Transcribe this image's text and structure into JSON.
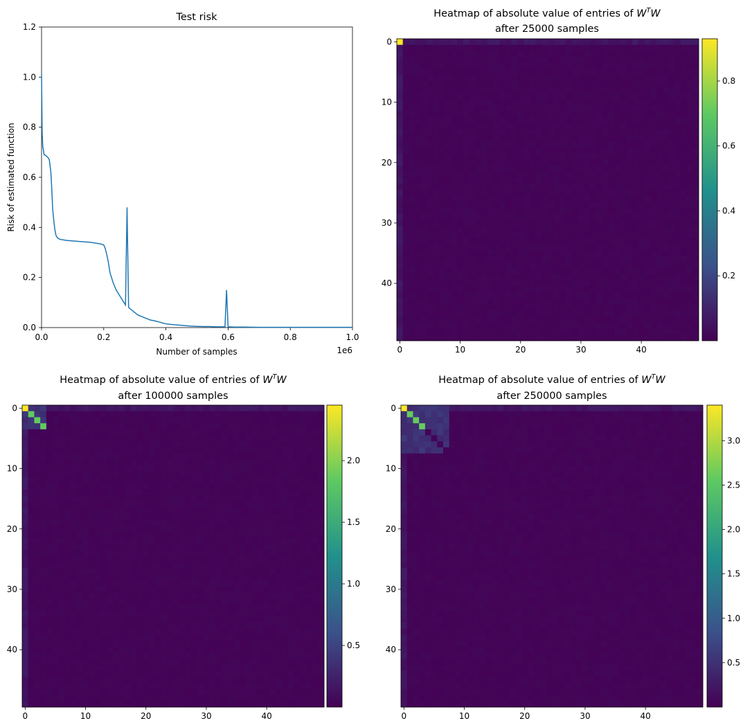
{
  "chart_data": [
    {
      "type": "line",
      "title": "Test risk",
      "xlabel": "Number of samples",
      "ylabel": "Risk of estimated function",
      "x_offset_text": "1e6",
      "xlim": [
        0,
        1.0
      ],
      "ylim": [
        0,
        1.2
      ],
      "xticks": [
        "0.0",
        "0.2",
        "0.4",
        "0.6",
        "0.8",
        "1.0"
      ],
      "yticks": [
        "0.0",
        "0.2",
        "0.4",
        "0.6",
        "0.8",
        "1.0",
        "1.2"
      ],
      "line_color": "#1f77b4",
      "series": [
        {
          "x": [
            0.0,
            0.002,
            0.004,
            0.006,
            0.008,
            0.01,
            0.015,
            0.02,
            0.025,
            0.03,
            0.033,
            0.036,
            0.04,
            0.043,
            0.046,
            0.05,
            0.055,
            0.06,
            0.07,
            0.08,
            0.09,
            0.1,
            0.11,
            0.12,
            0.13,
            0.14,
            0.15,
            0.16,
            0.17,
            0.18,
            0.19,
            0.2,
            0.205,
            0.21,
            0.215,
            0.22,
            0.23,
            0.24,
            0.25,
            0.26,
            0.27,
            0.275,
            0.28,
            0.29,
            0.3,
            0.31,
            0.32,
            0.33,
            0.34,
            0.35,
            0.36,
            0.37,
            0.38,
            0.39,
            0.4,
            0.42,
            0.44,
            0.46,
            0.48,
            0.5,
            0.52,
            0.54,
            0.56,
            0.58,
            0.59,
            0.595,
            0.6,
            0.62,
            0.65,
            0.7,
            0.8,
            0.9,
            1.0
          ],
          "y": [
            1.01,
            0.78,
            0.72,
            0.71,
            0.69,
            0.69,
            0.685,
            0.68,
            0.67,
            0.62,
            0.55,
            0.47,
            0.42,
            0.39,
            0.37,
            0.36,
            0.355,
            0.352,
            0.35,
            0.348,
            0.347,
            0.346,
            0.345,
            0.344,
            0.343,
            0.342,
            0.341,
            0.34,
            0.338,
            0.336,
            0.334,
            0.33,
            0.315,
            0.29,
            0.26,
            0.22,
            0.18,
            0.15,
            0.13,
            0.11,
            0.09,
            0.48,
            0.08,
            0.07,
            0.06,
            0.05,
            0.045,
            0.04,
            0.035,
            0.03,
            0.028,
            0.025,
            0.022,
            0.018,
            0.015,
            0.012,
            0.01,
            0.008,
            0.006,
            0.005,
            0.004,
            0.004,
            0.003,
            0.003,
            0.003,
            0.15,
            0.003,
            0.002,
            0.002,
            0.001,
            0.001,
            0.001,
            0.001
          ]
        }
      ]
    },
    {
      "type": "heatmap",
      "title": "Heatmap of absolute value of entries of W^T W",
      "subtitle": "after 25000 samples",
      "size": 50,
      "xticks": [
        "0",
        "10",
        "20",
        "30",
        "40"
      ],
      "yticks": [
        "0",
        "10",
        "20",
        "30",
        "40"
      ],
      "colorbar_ticks": [
        "0.2",
        "0.4",
        "0.6",
        "0.8"
      ],
      "vmin": 0.0,
      "vmax": 0.93,
      "diagonal": [
        0.93
      ],
      "block_size": 1,
      "colormap": [
        "#440154",
        "#3b528b",
        "#21918c",
        "#5ec962",
        "#fde725"
      ]
    },
    {
      "type": "heatmap",
      "title": "Heatmap of absolute value of entries of W^T W",
      "subtitle": "after 100000 samples",
      "size": 50,
      "xticks": [
        "0",
        "10",
        "20",
        "30",
        "40"
      ],
      "yticks": [
        "0",
        "10",
        "20",
        "30",
        "40"
      ],
      "colorbar_ticks": [
        "0.5",
        "1.0",
        "1.5",
        "2.0"
      ],
      "vmin": 0.0,
      "vmax": 2.45,
      "diagonal": [
        2.45,
        1.85,
        1.85,
        1.85
      ],
      "block_size": 4,
      "colormap": [
        "#440154",
        "#3b528b",
        "#21918c",
        "#5ec962",
        "#fde725"
      ]
    },
    {
      "type": "heatmap",
      "title": "Heatmap of absolute value of entries of W^T W",
      "subtitle": "after 250000 samples",
      "size": 50,
      "xticks": [
        "0",
        "10",
        "20",
        "30",
        "40"
      ],
      "yticks": [
        "0",
        "10",
        "20",
        "30",
        "40"
      ],
      "colorbar_ticks": [
        "0.5",
        "1.0",
        "1.5",
        "2.0",
        "2.5",
        "3.0"
      ],
      "vmin": 0.0,
      "vmax": 3.4,
      "diagonal": [
        3.4,
        2.6,
        2.6,
        2.6
      ],
      "block_size": 8,
      "colormap": [
        "#440154",
        "#3b528b",
        "#21918c",
        "#5ec962",
        "#fde725"
      ]
    }
  ]
}
